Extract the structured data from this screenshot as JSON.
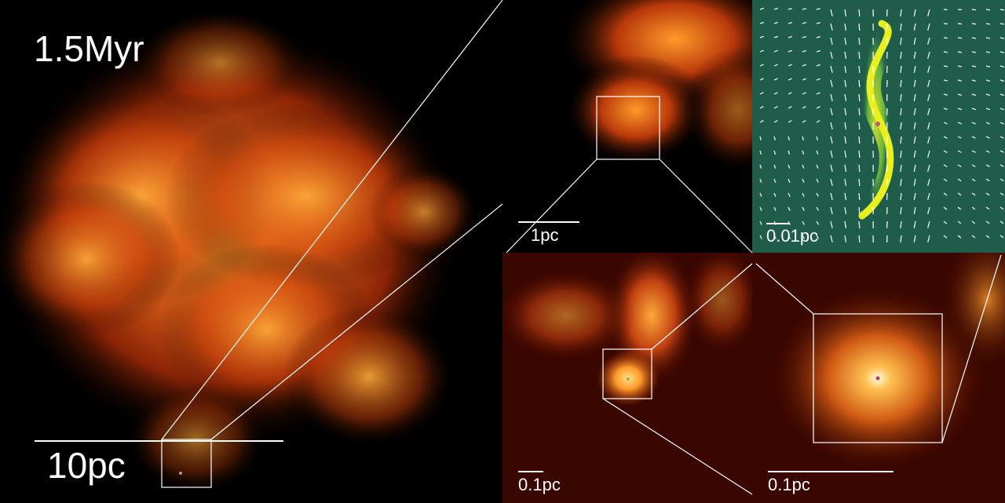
{
  "panels": {
    "main": {
      "time_label": "1.5Myr",
      "scale_label": "10pc"
    },
    "zoom1": {
      "scale_label": "1pc"
    },
    "magnetic": {
      "scale_label": "0.01pc"
    },
    "zoom2": {
      "scale_label": "0.1pc"
    },
    "zoom3": {
      "scale_label": "0.1pc"
    }
  },
  "colors": {
    "background": "#000000",
    "gas_hot": "#ff9a2a",
    "gas_mid": "#c8400a",
    "gas_dark": "#3a0600",
    "field_bg": "#1f5c4a",
    "field_core": "#e8f020",
    "annotation": "#ffffff"
  }
}
